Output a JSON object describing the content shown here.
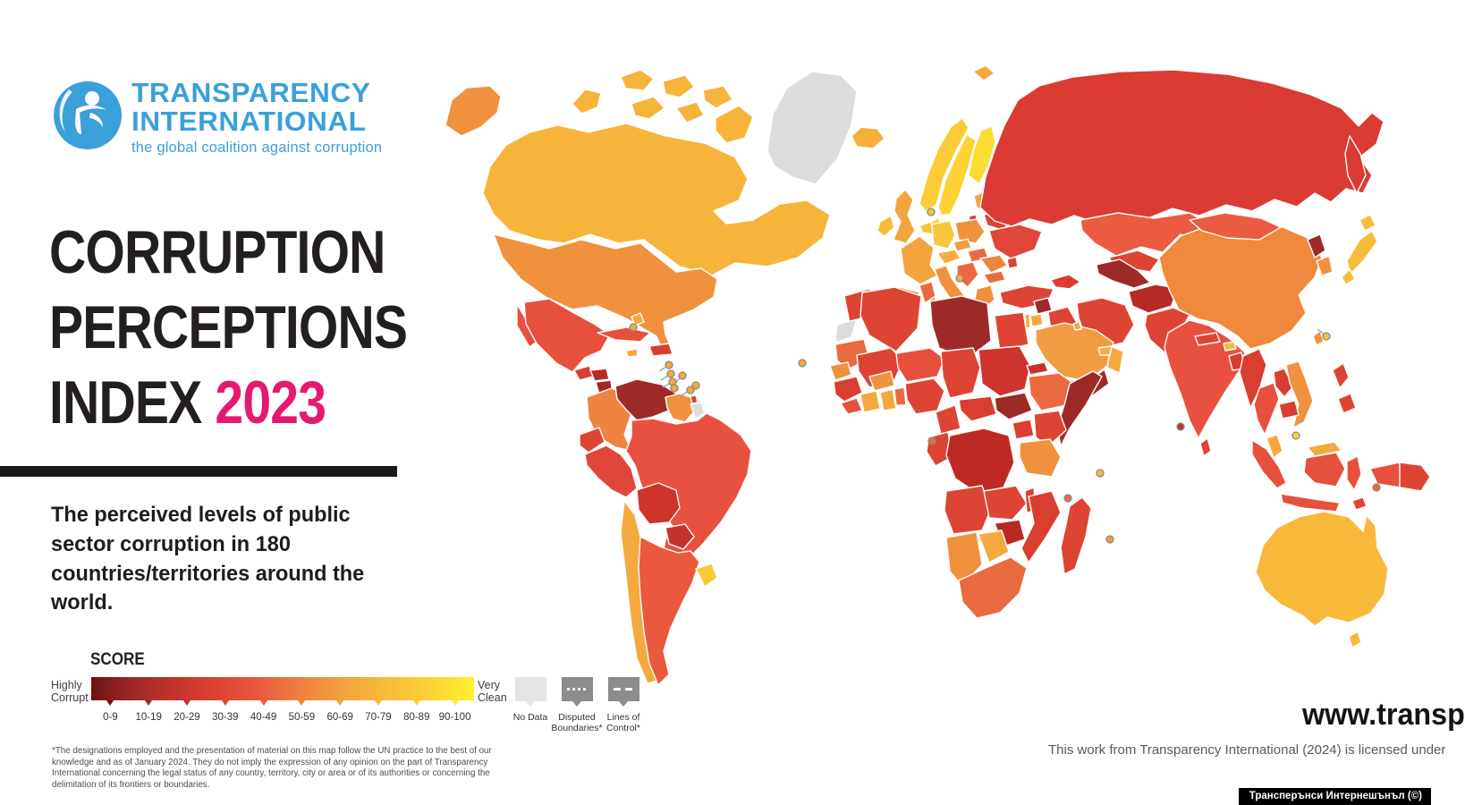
{
  "logo": {
    "line1": "TRANSPARENCY",
    "line2": "INTERNATIONAL",
    "tagline": "the global coalition against corruption",
    "blue": "#3AA0DA"
  },
  "title": {
    "line1": "CORRUPTION",
    "line2": "PERCEPTIONS",
    "line3_black": "INDEX",
    "line3_accent": "2023",
    "accent_color": "#E6186F"
  },
  "subtitle": "The perceived levels of public sector corruption in 180 countries/territories around the world.",
  "score_scale": {
    "heading": "SCORE",
    "left_label_line1": "Highly",
    "left_label_line2": "Corrupt",
    "right_label_line1": "Very",
    "right_label_line2": "Clean",
    "ticks": [
      "0-9",
      "10-19",
      "20-29",
      "30-39",
      "40-49",
      "50-59",
      "60-69",
      "70-79",
      "80-89",
      "90-100"
    ],
    "gradient": [
      "#6E1113",
      "#9E2A28",
      "#C4332B",
      "#DD4434",
      "#EA5B40",
      "#EF8440",
      "#F3A43E",
      "#F8BC3A",
      "#FBD336",
      "#FFF02D"
    ]
  },
  "legend": {
    "items": [
      {
        "label": "No Data",
        "box_color": "#E4E4E4",
        "pattern": "none"
      },
      {
        "label": "Disputed Boundaries*",
        "box_color": "#8C8C8C",
        "pattern": "dotted"
      },
      {
        "label": "Lines of Control*",
        "box_color": "#8C8C8C",
        "pattern": "dashed"
      }
    ]
  },
  "footnote": "*The designations employed and the presentation of material on this map follow the UN practice to the best of our knowledge and as of January 2024. They do not imply the expression of any opinion on the part of Transparency International concerning the legal status of any country, territory, city or area or of its authorities or concerning the delimitation of its frontiers or boundaries.",
  "bottom_right": {
    "url_text": "www.transp",
    "license_text": "This work from Transparency International (2024) is licensed under",
    "credit_badge": "Трансперънси Интернешънъл (©)"
  },
  "map": {
    "ocean": "#FFFFFF",
    "border_stroke": "#FFFFFF",
    "marker_stroke": "#8A8A8A",
    "regions": {
      "greenland": "#DCDCDC",
      "alaska": "#F0913E",
      "canada": "#F7B43B",
      "arctic_a": "#F7B43B",
      "arctic_b": "#F7B43B",
      "arctic_c": "#F7B43B",
      "arctic_d": "#F7B43B",
      "arctic_e": "#F7B43B",
      "arctic_f": "#F7B43B",
      "arctic_g": "#F7B43B",
      "usa": "#F0913E",
      "baja": "#E6503C",
      "mexico": "#E6503C",
      "guatemala": "#D93E31",
      "honduras": "#B52A25",
      "nicaragua": "#9E2A28",
      "costa_rica": "#F0913E",
      "panama": "#E6503C",
      "cuba": "#E6503C",
      "jamaica": "#F4A93E",
      "hispaniola": "#D93E31",
      "bahamas": "#F4A93E",
      "trinidad": "#DD4434",
      "colombia": "#EF8440",
      "venezuela": "#9E2A28",
      "guyana_suriname": "#F0913E",
      "french_guiana": "#DCDCDC",
      "ecuador": "#DD4434",
      "peru": "#E1463A",
      "brazil": "#E85140",
      "bolivia": "#CE332C",
      "paraguay": "#C4332B",
      "chile": "#F4A93E",
      "argentina": "#EA593E",
      "uruguay": "#FBC937",
      "iceland": "#F6AE3D",
      "svalbard": "#F4A93E",
      "ireland": "#F8BC3A",
      "uk": "#F3A43E",
      "norway": "#FBCC38",
      "sweden": "#FBD336",
      "finland": "#FCDC31",
      "denmark": "#FCD733",
      "baltics": "#F3A43E",
      "poland": "#F0913E",
      "germany": "#F8C438",
      "benelux": "#F8C438",
      "france": "#F3A43E",
      "spain": "#F0913E",
      "portugal": "#F6AE3D",
      "czechia": "#F19B43",
      "austria": "#F6AE3D",
      "italy": "#F0913E",
      "sicily": "#F0913E",
      "sardinia": "#F0913E",
      "hungary": "#EA6A40",
      "balkans": "#EA6A40",
      "romania": "#EF8440",
      "bulgaria": "#EA6A40",
      "greece": "#F0913E",
      "belarus": "#DD4434",
      "ukraine": "#E1463A",
      "moldova": "#DD4434",
      "kaliningrad": "#DA3B33",
      "russia": "#DA3B33",
      "kamchatka": "#DA3B33",
      "turkey": "#DD4434",
      "caucasus": "#D93E31",
      "syria": "#9E2A28",
      "iraq": "#DD4434",
      "iran": "#DD4434",
      "jordan": "#F4A93E",
      "israel": "#F6AE3D",
      "saudi": "#F19B43",
      "kuwait": "#F4A93E",
      "yemen": "#9E2A28",
      "oman": "#F4A93E",
      "uae": "#F6AE3D",
      "egypt": "#DD4434",
      "morocco": "#DD4434",
      "w_sahara": "#DCDCDC",
      "algeria": "#DD4434",
      "tunisia": "#EA6A40",
      "libya": "#9E2A28",
      "mauritania": "#EA6A40",
      "mali": "#DD4434",
      "senegal": "#F0913E",
      "guinea": "#D93E31",
      "sierra_liberia": "#E6503C",
      "cote_divoire": "#F4A93E",
      "ghana": "#F4A93E",
      "togo_benin": "#EA6A40",
      "burkina": "#F0913E",
      "niger": "#E6503C",
      "nigeria": "#DD4434",
      "chad": "#DD4434",
      "sudan": "#CE332C",
      "eritrea": "#C4332B",
      "ethiopia": "#EA6A40",
      "somalia": "#9E2A28",
      "south_sudan": "#9E2A28",
      "car": "#D93E31",
      "cameroon": "#DD4434",
      "congo_gabon": "#DD4434",
      "drc": "#BE2A23",
      "uganda": "#D93E31",
      "kenya": "#DD4434",
      "tanzania": "#F0913E",
      "angola": "#DD4434",
      "zambia": "#DD4434",
      "malawi": "#D93E31",
      "mozambique": "#D93E31",
      "zimbabwe": "#B52A25",
      "botswana": "#F4A93E",
      "namibia": "#F0913E",
      "south_africa": "#EA6A40",
      "madagascar": "#DD4434",
      "kazakhstan": "#EA5B40",
      "uzbekistan": "#DD4434",
      "turkmenistan": "#9E2A28",
      "kyrgyzstan": "#D93E31",
      "tajikistan": "#C4332B",
      "afghanistan": "#B52A25",
      "pakistan": "#DD4434",
      "india": "#E85140",
      "nepal": "#DD4434",
      "bhutan": "#F8BC3A",
      "bangladesh": "#D93E31",
      "sri_lanka": "#DD4434",
      "china": "#F0883E",
      "mongolia": "#EA5B40",
      "north_korea": "#9E2A28",
      "south_korea": "#F0913E",
      "japan_hokkaido": "#F8BC3A",
      "japan_honshu": "#F8BC3A",
      "japan_kyushu": "#F8BC3A",
      "taiwan": "#F0913E",
      "myanmar": "#D93E31",
      "thailand": "#E6503C",
      "laos": "#D93E31",
      "vietnam": "#F0913E",
      "cambodia": "#D93E31",
      "malaysia": "#F4A93E",
      "malaysia_borneo": "#F4A93E",
      "sumatra": "#E6503C",
      "java": "#E6503C",
      "kalimantan": "#E6503C",
      "sulawesi": "#E6503C",
      "papua_id": "#E6503C",
      "png": "#DD4434",
      "philippines_luzon": "#DD4434",
      "philippines_mindanao": "#DD4434",
      "timor": "#DD4434",
      "australia": "#F8B83A",
      "tasmania": "#F8B83A",
      "m_bahamas": "#F4A93E",
      "m_ant1": "#F4A93E",
      "m_ant2": "#F4A93E",
      "m_ant3": "#F4A93E",
      "m_ant4": "#F4A93E",
      "m_ant5": "#F4A93E",
      "m_ant6": "#F4A93E",
      "m_ant7": "#F4A93E",
      "m_caboverde": "#F4A93E",
      "m_luxembourg": "#F8C438",
      "m_malta": "#F4A93E",
      "m_saotome": "#EA6A40",
      "m_seychelles": "#F8BC3A",
      "m_comoros": "#EA6A40",
      "m_mauritius": "#E8A03C",
      "m_maldives": "#C4332B",
      "m_hongkong": "#F8C438",
      "m_singapore": "#FBD336",
      "m_timor": "#EA6A40"
    }
  }
}
